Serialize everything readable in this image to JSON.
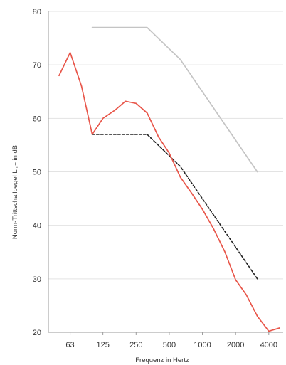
{
  "chart_data": {
    "type": "line",
    "title": "",
    "xlabel": "Frequenz in Hertz",
    "ylabel_main": "Norm-Trittschallpegel L",
    "ylabel_sub": "n,T",
    "ylabel_unit": " in dB",
    "x_scale": "log",
    "x_ticks": [
      63,
      125,
      250,
      500,
      1000,
      2000,
      4000
    ],
    "x_tick_labels": [
      "63",
      "125",
      "250",
      "500",
      "1000",
      "2000",
      "4000"
    ],
    "xlim": [
      40,
      5400
    ],
    "ylim": [
      20,
      80
    ],
    "y_ticks": [
      20,
      30,
      40,
      50,
      60,
      70,
      80
    ],
    "y_tick_labels": [
      "20",
      "30",
      "40",
      "50",
      "60",
      "70",
      "80"
    ],
    "grid": "horizontal",
    "legend": "none",
    "series": [
      {
        "style": "solid",
        "color": "#e8564a",
        "x": [
          50,
          63,
          80,
          100,
          125,
          160,
          200,
          250,
          315,
          400,
          500,
          630,
          800,
          1000,
          1250,
          1600,
          2000,
          2500,
          3150,
          4000,
          5000
        ],
        "y": [
          68,
          72.3,
          66,
          57,
          60,
          61.5,
          63.2,
          62.8,
          61,
          56.5,
          53.5,
          49,
          46,
          43,
          39.5,
          35,
          29.8,
          27,
          23,
          20.2,
          20.8
        ]
      },
      {
        "style": "dashed",
        "color": "#222222",
        "x": [
          100,
          315,
          630,
          3150
        ],
        "y": [
          57,
          57,
          51,
          30
        ]
      },
      {
        "style": "solid",
        "color": "#c4c4c4",
        "x": [
          100,
          315,
          630,
          3150
        ],
        "y": [
          77,
          77,
          71,
          50
        ]
      }
    ]
  }
}
